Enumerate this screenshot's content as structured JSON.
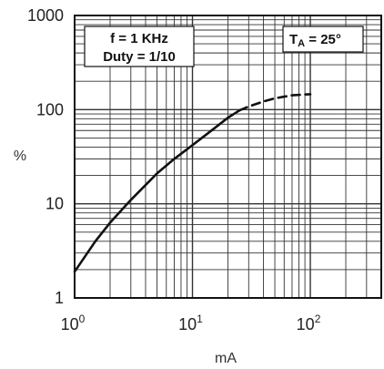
{
  "chart_data": {
    "type": "line",
    "title": "",
    "xlabel": "mA",
    "ylabel": "%",
    "xscale": "log",
    "yscale": "log",
    "xlim": [
      1,
      400
    ],
    "ylim": [
      1,
      1000
    ],
    "grid": true,
    "x_ticks": [
      {
        "base": "10",
        "exp": "0"
      },
      {
        "base": "10",
        "exp": "1"
      },
      {
        "base": "10",
        "exp": "2"
      }
    ],
    "y_ticks": [
      "1",
      "10",
      "100",
      "1000"
    ],
    "series": [
      {
        "style": "solid",
        "x": [
          1,
          1.5,
          2,
          3,
          5,
          7,
          10,
          15,
          20,
          25
        ],
        "y": [
          1.9,
          4.0,
          6.3,
          11,
          21,
          30,
          42,
          62,
          82,
          98
        ]
      },
      {
        "style": "dashed",
        "x": [
          25,
          30,
          40,
          50,
          70,
          100
        ],
        "y": [
          98,
          108,
          122,
          132,
          142,
          146
        ]
      }
    ],
    "annotations": {
      "conditions": {
        "line1": "f = 1 KHz",
        "line2": "Duty = 1/10"
      },
      "temperature": {
        "main": "T",
        "sub": "A",
        "rest": " = 25°"
      }
    },
    "colors": {
      "line": "#111111",
      "grid": "#333333",
      "frame": "#111111"
    }
  }
}
